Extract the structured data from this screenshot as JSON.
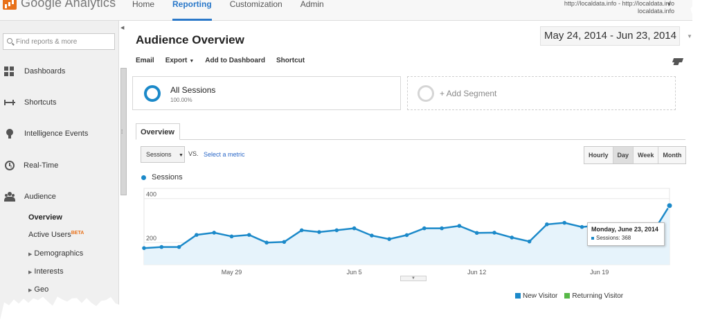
{
  "app": {
    "title": "Google Analytics"
  },
  "nav": {
    "items": [
      "Home",
      "Reporting",
      "Customization",
      "Admin"
    ],
    "active": "Reporting"
  },
  "account": {
    "line1": "http://localdata.info - http://localdata.info",
    "line2": "localdata.info"
  },
  "sidebar": {
    "search_placeholder": "Find reports & more",
    "items": [
      {
        "label": "Dashboards",
        "icon": "grid-icon"
      },
      {
        "label": "Shortcuts",
        "icon": "shortcut-icon"
      },
      {
        "label": "Intelligence Events",
        "icon": "lightbulb-icon"
      },
      {
        "label": "Real-Time",
        "icon": "clock-icon"
      },
      {
        "label": "Audience",
        "icon": "people-icon"
      }
    ],
    "subitems": {
      "overview": "Overview",
      "active_users": "Active Users",
      "beta": "BETA",
      "demographics": "Demographics",
      "interests": "Interests",
      "geo": "Geo"
    }
  },
  "main": {
    "title": "Audience Overview",
    "date_range": "May 24, 2014 - Jun 23, 2014",
    "toolbar": {
      "email": "Email",
      "export": "Export",
      "add_dashboard": "Add to Dashboard",
      "shortcut": "Shortcut"
    },
    "segments": [
      {
        "name": "All Sessions",
        "percent": "100.00%"
      },
      {
        "name": "+ Add Segment"
      }
    ],
    "tab": "Overview",
    "metric": "Sessions",
    "vs": "VS.",
    "select_metric": "Select a metric",
    "granularity": [
      "Hourly",
      "Day",
      "Week",
      "Month"
    ],
    "granularity_active": "Day",
    "legend_label": "Sessions",
    "tooltip": {
      "date": "Monday, June 23, 2014",
      "label": "Sessions: 368"
    },
    "visitor_legend": [
      {
        "label": "New Visitor",
        "color": "#1b89c9"
      },
      {
        "label": "Returning Visitor",
        "color": "#57b847"
      }
    ]
  },
  "chart_data": {
    "type": "area",
    "series": [
      {
        "name": "Sessions",
        "values": [
          175,
          180,
          180,
          235,
          245,
          228,
          235,
          200,
          203,
          256,
          248,
          256,
          265,
          232,
          216,
          234,
          265,
          265,
          276,
          244,
          245,
          223,
          205,
          283,
          290,
          271,
          279,
          264,
          218,
          240,
          368
        ]
      }
    ],
    "x": [
      "May 24",
      "May 25",
      "May 26",
      "May 27",
      "May 28",
      "May 29",
      "May 30",
      "May 31",
      "Jun 1",
      "Jun 2",
      "Jun 3",
      "Jun 4",
      "Jun 5",
      "Jun 6",
      "Jun 7",
      "Jun 8",
      "Jun 9",
      "Jun 10",
      "Jun 11",
      "Jun 12",
      "Jun 13",
      "Jun 14",
      "Jun 15",
      "Jun 16",
      "Jun 17",
      "Jun 18",
      "Jun 19",
      "Jun 20",
      "Jun 21",
      "Jun 22",
      "Jun 23"
    ],
    "x_ticks": [
      "May 29",
      "Jun 5",
      "Jun 12",
      "Jun 19"
    ],
    "y_ticks": [
      "200",
      "400"
    ],
    "ylim": [
      100,
      440
    ],
    "grid": true,
    "color": "#1b89c9",
    "fill": "#e6f3fb"
  }
}
